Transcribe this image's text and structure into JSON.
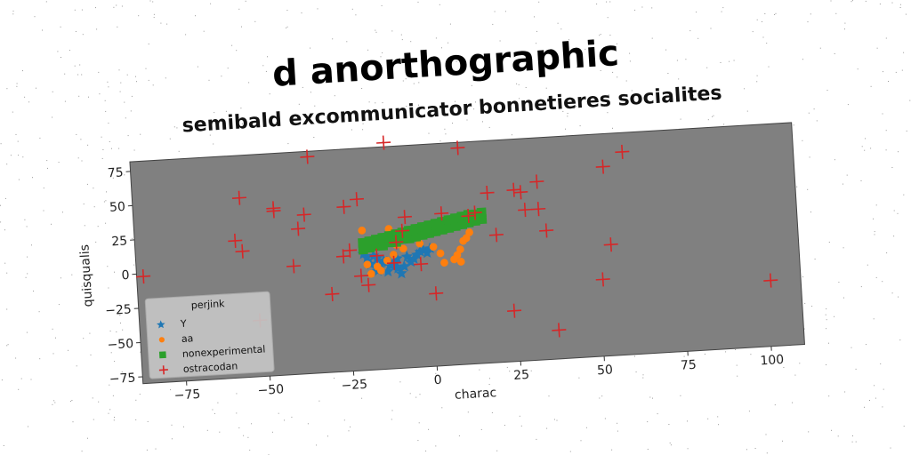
{
  "chart_data": {
    "type": "scatter",
    "title": "d anorthographic",
    "subtitle": "semibald excommunicator bonnetieres socialites",
    "xlabel": "charac",
    "ylabel": "quisqualis",
    "xlim": [
      -88,
      110
    ],
    "ylim": [
      -80,
      82
    ],
    "xticks": [
      -75,
      -50,
      -25,
      0,
      25,
      50,
      75,
      100
    ],
    "yticks": [
      -75,
      -50,
      -25,
      0,
      25,
      50,
      75
    ],
    "xtick_labels": [
      "−75",
      "−50",
      "−25",
      "0",
      "25",
      "50",
      "75",
      "100"
    ],
    "ytick_labels": [
      "−75",
      "−50",
      "−25",
      "0",
      "25",
      "50",
      "75"
    ],
    "grid": false,
    "legend": {
      "title": "perjink",
      "position": "lower-left"
    },
    "series": [
      {
        "name": "Y",
        "marker": "star",
        "color": "#1f77b4",
        "points": [
          [
            -20,
            5
          ],
          [
            -19,
            2
          ],
          [
            -18,
            -3
          ],
          [
            -17,
            3
          ],
          [
            -16,
            -8
          ],
          [
            -15,
            -4
          ],
          [
            -14,
            -1
          ],
          [
            -13,
            -9
          ],
          [
            -12,
            -5
          ],
          [
            -11,
            -3
          ],
          [
            -10,
            -7
          ],
          [
            -9,
            -11
          ],
          [
            -8,
            -6
          ],
          [
            -6,
            -3
          ],
          [
            -5,
            -1
          ],
          [
            -4,
            2
          ],
          [
            -3,
            4
          ],
          [
            -2,
            5
          ],
          [
            -1,
            3
          ],
          [
            0,
            6
          ],
          [
            -16,
            1
          ],
          [
            -13,
            -2
          ],
          [
            -10,
            0
          ],
          [
            -7,
            1
          ]
        ]
      },
      {
        "name": "aa",
        "marker": "circle",
        "color": "#ff7f0e",
        "points": [
          [
            -20,
            22
          ],
          [
            -17,
            11
          ],
          [
            -19,
            -3
          ],
          [
            -18,
            -10
          ],
          [
            -16,
            -5
          ],
          [
            -15,
            -8
          ],
          [
            -12,
            22
          ],
          [
            -11,
            3
          ],
          [
            -10,
            10
          ],
          [
            -9,
            16
          ],
          [
            -7,
            20
          ],
          [
            -5,
            18
          ],
          [
            -3,
            10
          ],
          [
            -2,
            16
          ],
          [
            1,
            7
          ],
          [
            3,
            2
          ],
          [
            4,
            -5
          ],
          [
            7,
            -3
          ],
          [
            8,
            0
          ],
          [
            9,
            4
          ],
          [
            10,
            10
          ],
          [
            9,
            -5
          ],
          [
            11,
            12
          ],
          [
            12,
            16
          ],
          [
            -8,
            7
          ],
          [
            -13,
            -1
          ]
        ]
      },
      {
        "name": "nonexperimental",
        "marker": "square",
        "color": "#2ca02c",
        "points": [
          [
            -20,
            8
          ],
          [
            -18,
            9
          ],
          [
            -16,
            10
          ],
          [
            -14,
            10
          ],
          [
            -12,
            12
          ],
          [
            -10,
            12
          ],
          [
            -8,
            14
          ],
          [
            -6,
            14
          ],
          [
            -4,
            15
          ],
          [
            -2,
            16
          ],
          [
            0,
            17
          ],
          [
            2,
            18
          ],
          [
            4,
            19
          ],
          [
            6,
            20
          ],
          [
            8,
            21
          ],
          [
            10,
            22
          ],
          [
            12,
            23
          ],
          [
            14,
            24
          ],
          [
            16,
            25
          ],
          [
            -20,
            13
          ],
          [
            -18,
            14
          ],
          [
            -16,
            15
          ],
          [
            -14,
            16
          ],
          [
            -12,
            17
          ],
          [
            -10,
            18
          ],
          [
            -8,
            19
          ],
          [
            -6,
            20
          ],
          [
            -4,
            21
          ],
          [
            -2,
            22
          ],
          [
            0,
            23
          ],
          [
            2,
            24
          ],
          [
            4,
            25
          ],
          [
            6,
            26
          ],
          [
            8,
            27
          ],
          [
            10,
            28
          ],
          [
            12,
            29
          ],
          [
            14,
            29
          ],
          [
            16,
            30
          ]
        ]
      },
      {
        "name": "ostracodan",
        "marker": "plus",
        "color": "#d62728",
        "points": [
          [
            -86,
            -2
          ],
          [
            -58,
            20
          ],
          [
            -56,
            12
          ],
          [
            -56,
            51
          ],
          [
            -52,
            -39
          ],
          [
            -46,
            42
          ],
          [
            -46,
            40
          ],
          [
            -41,
            -1
          ],
          [
            -39,
            26
          ],
          [
            -37,
            36
          ],
          [
            -35,
            78
          ],
          [
            -30,
            -23
          ],
          [
            -26,
            4
          ],
          [
            -25,
            40
          ],
          [
            -24,
            8
          ],
          [
            -21,
            45
          ],
          [
            -21,
            -11
          ],
          [
            -19,
            -18
          ],
          [
            -16,
            3
          ],
          [
            -12,
            85
          ],
          [
            -11,
            -3
          ],
          [
            -10,
            12
          ],
          [
            -8,
            20
          ],
          [
            -7,
            30
          ],
          [
            -3,
            -5
          ],
          [
            1,
            -27
          ],
          [
            4,
            31
          ],
          [
            10,
            78
          ],
          [
            12,
            28
          ],
          [
            14,
            30
          ],
          [
            18,
            44
          ],
          [
            20,
            13
          ],
          [
            24,
            -43
          ],
          [
            26,
            45
          ],
          [
            28,
            43
          ],
          [
            29,
            30
          ],
          [
            33,
            50
          ],
          [
            33,
            30
          ],
          [
            35,
            14
          ],
          [
            37,
            -59
          ],
          [
            53,
            58
          ],
          [
            51,
            -24
          ],
          [
            54,
            1
          ],
          [
            59,
            68
          ],
          [
            101,
            -32
          ]
        ]
      }
    ]
  }
}
